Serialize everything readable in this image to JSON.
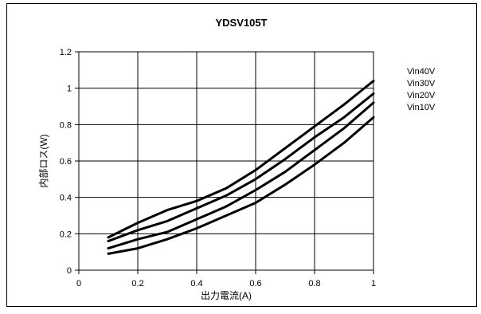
{
  "chart_data": {
    "type": "line",
    "title": "YDSV105T",
    "xlabel": "出力電流(A)",
    "ylabel": "内部ロス(W)",
    "xlim": [
      0,
      1
    ],
    "ylim": [
      0,
      1.2
    ],
    "x_ticks": [
      "0",
      "0.2",
      "0.4",
      "0.6",
      "0.8",
      "1"
    ],
    "y_ticks": [
      "0",
      "0.2",
      "0.4",
      "0.6",
      "0.8",
      "1",
      "1.2"
    ],
    "grid": true,
    "legend_position": "right",
    "series": [
      {
        "name": "Vin40V",
        "x": [
          0.1,
          0.2,
          0.3,
          0.4,
          0.5,
          0.6,
          0.7,
          0.8,
          0.9,
          1.0
        ],
        "y": [
          0.18,
          0.26,
          0.33,
          0.38,
          0.45,
          0.55,
          0.67,
          0.79,
          0.91,
          1.04
        ]
      },
      {
        "name": "Vin30V",
        "x": [
          0.1,
          0.2,
          0.3,
          0.4,
          0.5,
          0.6,
          0.7,
          0.8,
          0.9,
          1.0
        ],
        "y": [
          0.16,
          0.22,
          0.27,
          0.34,
          0.41,
          0.5,
          0.61,
          0.73,
          0.84,
          0.97
        ]
      },
      {
        "name": "Vin20V",
        "x": [
          0.1,
          0.2,
          0.3,
          0.4,
          0.5,
          0.6,
          0.7,
          0.8,
          0.9,
          1.0
        ],
        "y": [
          0.12,
          0.17,
          0.21,
          0.28,
          0.35,
          0.44,
          0.54,
          0.66,
          0.78,
          0.92
        ]
      },
      {
        "name": "Vin10V",
        "x": [
          0.1,
          0.2,
          0.3,
          0.4,
          0.5,
          0.6,
          0.7,
          0.8,
          0.9,
          1.0
        ],
        "y": [
          0.09,
          0.12,
          0.17,
          0.23,
          0.3,
          0.37,
          0.47,
          0.58,
          0.7,
          0.84
        ]
      }
    ],
    "line_color": "#000000"
  }
}
